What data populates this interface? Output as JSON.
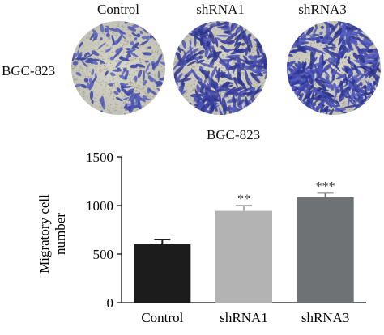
{
  "panel_a": {
    "columns": [
      "Control",
      "shRNA1",
      "shRNA3"
    ],
    "row_label": "BGC-823"
  },
  "chart_data": {
    "type": "bar",
    "subtitle": "BGC-823",
    "categories": [
      "Control",
      "shRNA1",
      "shRNA3"
    ],
    "values": [
      600,
      945,
      1085
    ],
    "errors": [
      50,
      55,
      45
    ],
    "significance": [
      "",
      "**",
      "***"
    ],
    "bar_colors": [
      "#1c1c1c",
      "#b3b3b3",
      "#6e7275"
    ],
    "xlabel": "",
    "ylabel": "Migratory cell\nnumber",
    "ylabel_lines": [
      "Migratory cell",
      "number"
    ],
    "ylim": [
      0,
      1500
    ],
    "yticks": [
      0,
      500,
      1000,
      1500
    ],
    "grid": false
  }
}
